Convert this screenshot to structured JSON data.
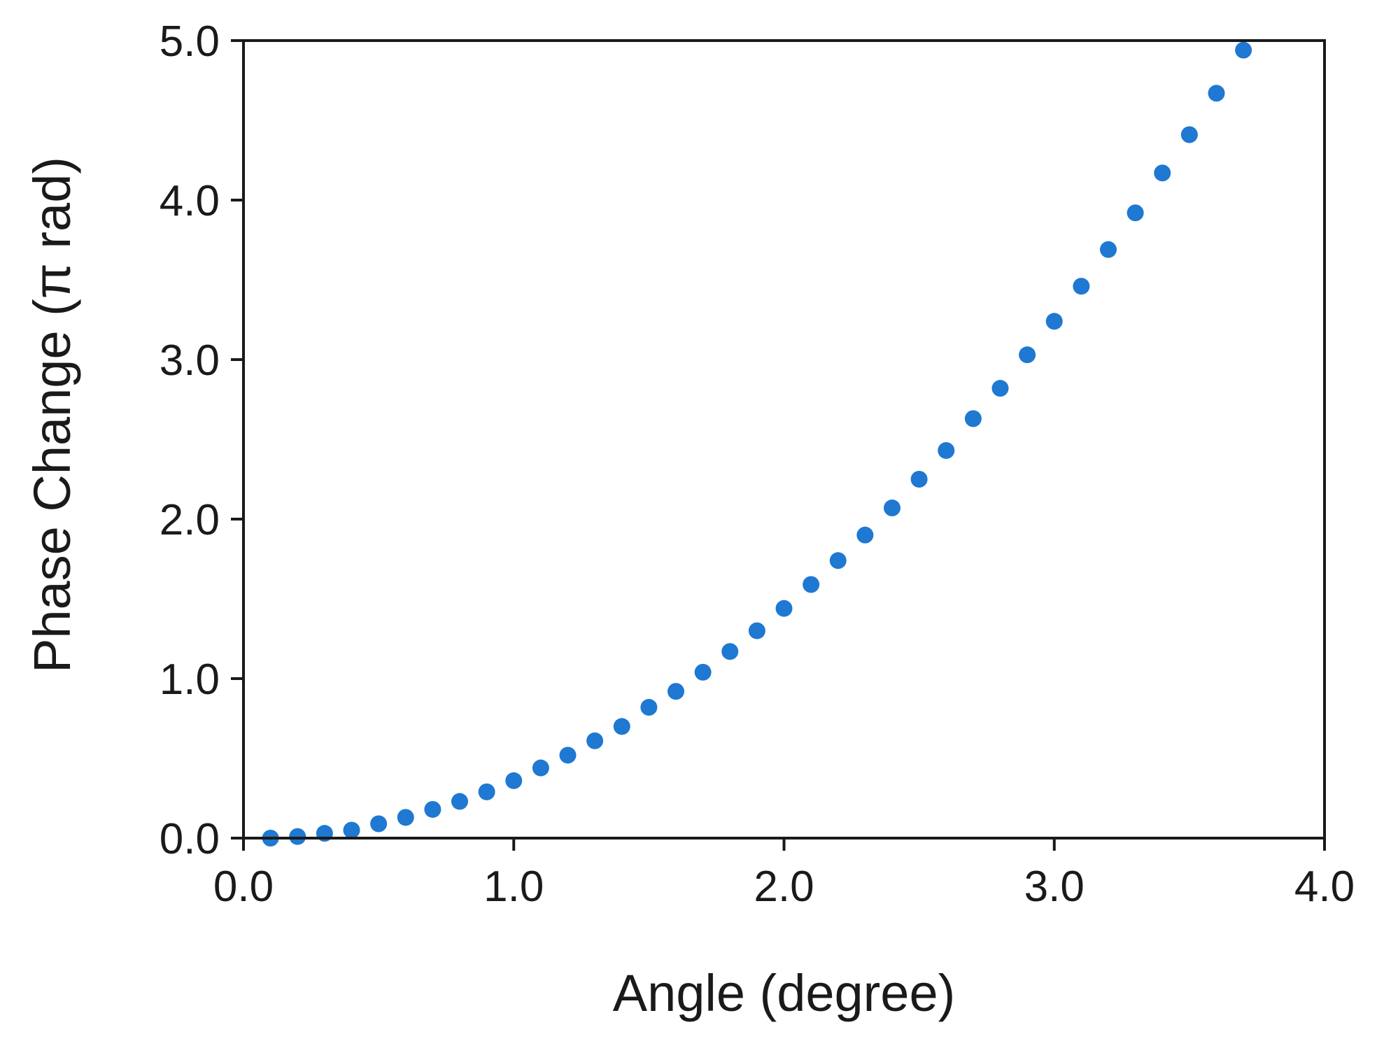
{
  "chart_data": {
    "type": "scatter",
    "xlabel": "Angle (degree)",
    "ylabel": "Phase Change (π rad)",
    "xlim": [
      0.0,
      4.0
    ],
    "ylim": [
      0.0,
      5.0
    ],
    "x_ticks": [
      "0.0",
      "1.0",
      "2.0",
      "3.0",
      "4.0"
    ],
    "y_ticks": [
      "0.0",
      "1.0",
      "2.0",
      "3.0",
      "4.0",
      "5.0"
    ],
    "grid": false,
    "legend": "none",
    "marker_color": "#1f78d1",
    "series": [
      {
        "x": [
          0.1,
          0.2,
          0.3,
          0.4,
          0.5,
          0.6,
          0.7,
          0.8,
          0.9,
          1.0,
          1.1,
          1.2,
          1.3,
          1.4,
          1.5,
          1.6,
          1.7,
          1.8,
          1.9,
          2.0,
          2.1,
          2.2,
          2.3,
          2.4,
          2.5,
          2.6,
          2.7,
          2.8,
          2.9,
          3.0,
          3.1,
          3.2,
          3.3,
          3.4,
          3.5,
          3.6,
          3.7
        ],
        "y": [
          0.0,
          0.01,
          0.03,
          0.05,
          0.09,
          0.13,
          0.18,
          0.23,
          0.29,
          0.36,
          0.44,
          0.52,
          0.61,
          0.7,
          0.82,
          0.92,
          1.04,
          1.17,
          1.3,
          1.44,
          1.59,
          1.74,
          1.9,
          2.07,
          2.25,
          2.43,
          2.63,
          2.82,
          3.03,
          3.24,
          3.46,
          3.69,
          3.92,
          4.17,
          4.41,
          4.67,
          4.94
        ]
      }
    ]
  }
}
